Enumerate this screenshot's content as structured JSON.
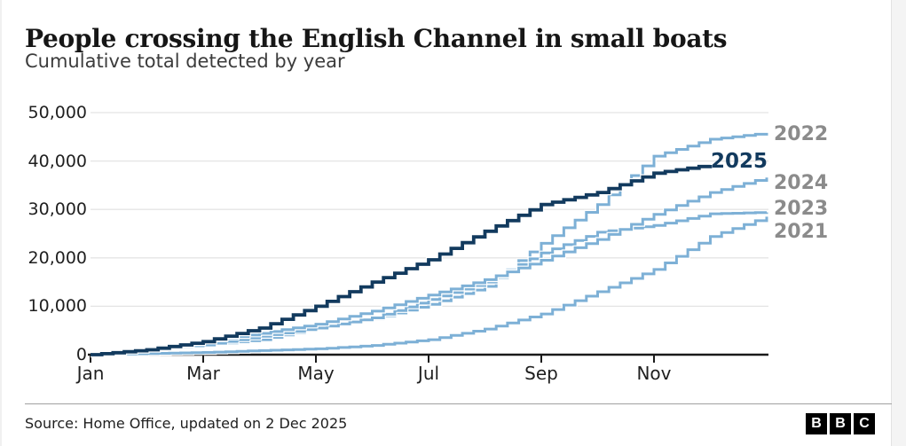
{
  "chart_data": {
    "type": "line",
    "title": "People crossing the English Channel in small boats",
    "subtitle": "Cumulative total detected by year",
    "grid": "horizontal",
    "legend_position": "end-of-line-labels",
    "x_axis": {
      "tick_labels": [
        "Jan",
        "Mar",
        "May",
        "Jul",
        "Sep",
        "Nov"
      ],
      "range": [
        "Jan 1",
        "Dec 31"
      ]
    },
    "y_axis": {
      "ticks": [
        0,
        10000,
        20000,
        30000,
        40000,
        50000
      ],
      "tick_labels": [
        "0",
        "10,000",
        "20,000",
        "30,000",
        "40,000",
        "50,000"
      ],
      "lim": [
        0,
        50000
      ]
    },
    "x_points": [
      "Jan 1",
      "Feb 1",
      "Mar 1",
      "Apr 1",
      "May 1",
      "Jun 1",
      "Jul 1",
      "Aug 1",
      "Sep 1",
      "Oct 1",
      "Nov 1",
      "Dec 1",
      "Dec 31"
    ],
    "series": [
      {
        "name": "2021",
        "color": "#7db0d6",
        "values": [
          0,
          230,
          460,
          840,
          1200,
          1900,
          3100,
          5300,
          8400,
          13000,
          17600,
          24400,
          28500
        ]
      },
      {
        "name": "2022",
        "color": "#7db0d6",
        "values": [
          0,
          1350,
          2000,
          3100,
          5500,
          7400,
          10400,
          14100,
          23000,
          31000,
          41000,
          44500,
          45800
        ]
      },
      {
        "name": "2023",
        "color": "#7db0d6",
        "values": [
          0,
          1200,
          2000,
          3800,
          5500,
          7600,
          11400,
          15000,
          21000,
          25300,
          26700,
          29100,
          29400
        ]
      },
      {
        "name": "2024",
        "color": "#7db0d6",
        "values": [
          0,
          1300,
          2800,
          4400,
          6300,
          9000,
          12300,
          15500,
          19500,
          23800,
          29000,
          33500,
          36600
        ]
      },
      {
        "name": "2025",
        "color": "#123a5e",
        "highlight": true,
        "ends_at": "Dec 1",
        "values": [
          0,
          1000,
          2700,
          5500,
          10000,
          15000,
          19600,
          25500,
          31000,
          33500,
          37500,
          39200
        ]
      }
    ]
  },
  "colors": {
    "line_light": "#7db0d6",
    "line_dark": "#123a5e",
    "year_label_gray": "#8b8b8b",
    "gridline": "#e4e4e4",
    "axis": "#1a1a1a"
  },
  "footer": {
    "source": "Source: Home Office, updated on 2 Dec 2025",
    "logo_letters": [
      "B",
      "B",
      "C"
    ]
  }
}
